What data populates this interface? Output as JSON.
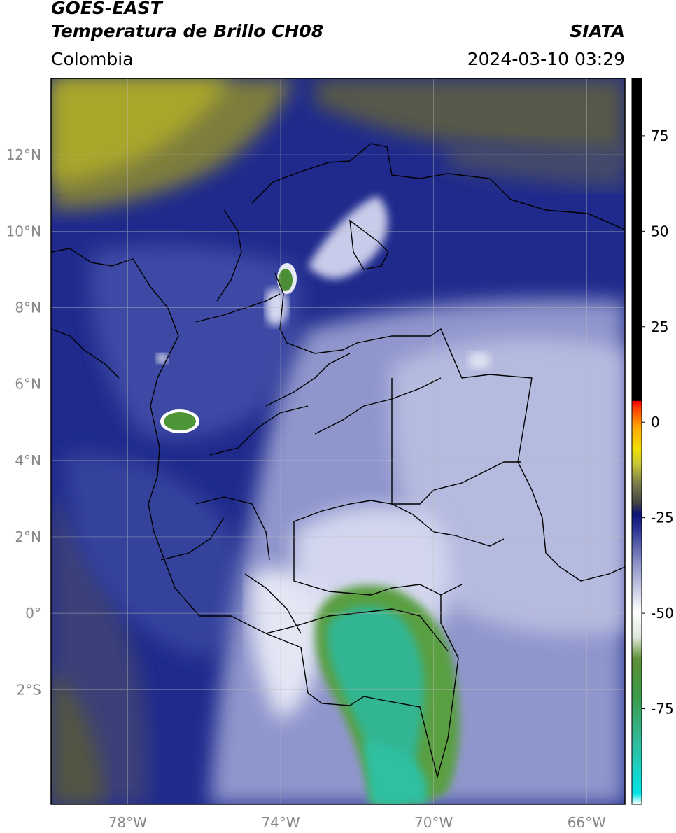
{
  "header": {
    "satellite": "GOES-EAST",
    "product": "Temperatura de Brillo CH08",
    "agency": "SIATA",
    "region": "Colombia",
    "datetime": "2024-03-10 03:29"
  },
  "map": {
    "lon_range": [
      -80,
      -65
    ],
    "lat_range": [
      -5,
      14
    ],
    "lat_ticks": [
      {
        "value": 12,
        "label": "12°N"
      },
      {
        "value": 10,
        "label": "10°N"
      },
      {
        "value": 8,
        "label": "8°N"
      },
      {
        "value": 6,
        "label": "6°N"
      },
      {
        "value": 4,
        "label": "4°N"
      },
      {
        "value": 2,
        "label": "2°N"
      },
      {
        "value": 0,
        "label": "0°"
      },
      {
        "value": -2,
        "label": "2°S"
      }
    ],
    "lon_ticks": [
      {
        "value": -78,
        "label": "78°W"
      },
      {
        "value": -74,
        "label": "74°W"
      },
      {
        "value": -70,
        "label": "70°W"
      },
      {
        "value": -66,
        "label": "66°W"
      }
    ],
    "grid": true
  },
  "colorbar": {
    "range": [
      -100,
      90
    ],
    "ticks": [
      {
        "value": 75,
        "label": "75"
      },
      {
        "value": 50,
        "label": "50"
      },
      {
        "value": 25,
        "label": "25"
      },
      {
        "value": 0,
        "label": "0"
      },
      {
        "value": -25,
        "label": "-25"
      },
      {
        "value": -50,
        "label": "-50"
      },
      {
        "value": -75,
        "label": "-75"
      }
    ]
  },
  "colors": {
    "dry_yellow": "#a8a62a",
    "olive": "#6b6b3c",
    "dark_blue": "#1a237e",
    "mid_blue": "#3b4aa0",
    "light_blue": "#9ea6d4",
    "pale": "#e6e8f4",
    "cold_green": "#4a9a3a",
    "cold_teal": "#2ec4a6"
  }
}
